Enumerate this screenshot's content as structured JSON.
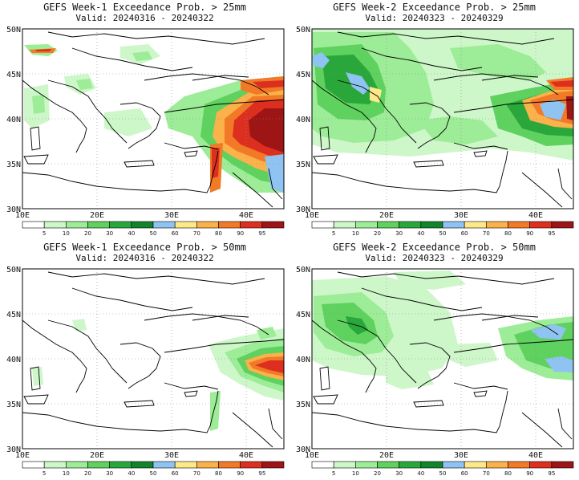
{
  "colors": {
    "c5": "#ffffff",
    "c10": "#cdf7c9",
    "c20": "#9dec97",
    "c30": "#5ed15e",
    "c40": "#2aa73a",
    "c50": "#11832a",
    "c60": "#8ec3f2",
    "c70": "#fde88a",
    "c80": "#fbb24b",
    "c90": "#f27a27",
    "c95": "#dc2f1f",
    "c100": "#9e1515",
    "coast": "#000000",
    "grid": "#8a8a8a"
  },
  "colorbar": {
    "labels": [
      "5",
      "10",
      "20",
      "30",
      "40",
      "50",
      "60",
      "70",
      "80",
      "90",
      "95"
    ]
  },
  "map": {
    "lon_labels": [
      "10E",
      "20E",
      "30E",
      "40E"
    ],
    "lat_labels": [
      "50N",
      "45N",
      "40N",
      "35N",
      "30N"
    ],
    "lon_range": [
      10,
      45
    ],
    "lat_range": [
      30,
      50
    ]
  },
  "panels": [
    {
      "id": "w1-25",
      "title": "GEFS Week-1 Exceedance Prob. > 25mm",
      "valid": "Valid: 20240316 - 20240322"
    },
    {
      "id": "w2-25",
      "title": "GEFS Week-2 Exceedance Prob. > 25mm",
      "valid": "Valid: 20240323 - 20240329"
    },
    {
      "id": "w1-50",
      "title": "GEFS Week-1 Exceedance Prob. > 50mm",
      "valid": "Valid: 20240316 - 20240322"
    },
    {
      "id": "w2-50",
      "title": "GEFS Week-2 Exceedance Prob. > 50mm",
      "valid": "Valid: 20240323 - 20240329"
    }
  ]
}
